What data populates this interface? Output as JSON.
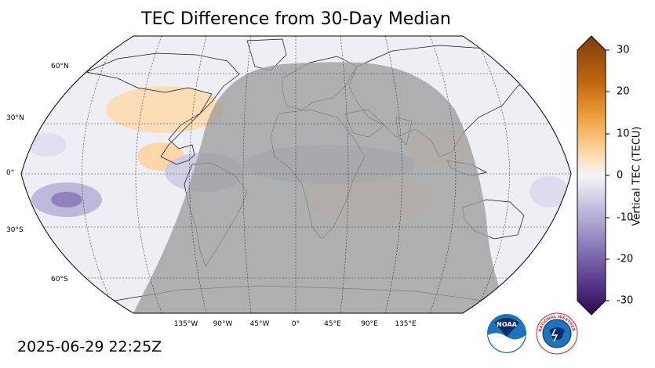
{
  "title": "TEC Difference from 30-Day Median",
  "timestamp": "2025-06-29 22:25Z",
  "latitude_labels": [
    "60°N",
    "30°N",
    "0°",
    "30°S",
    "60°S"
  ],
  "longitude_labels": [
    "135°W",
    "90°W",
    "45°W",
    "0°",
    "45°E",
    "90°E",
    "135°E"
  ],
  "colorbar": {
    "label": "Vertical TEC (TECU)",
    "ticks": [
      "30",
      "20",
      "10",
      "0",
      "-10",
      "-20",
      "-30"
    ],
    "range": [
      -30,
      30
    ],
    "colors": {
      "max": "#7a3e0e",
      "high": "#e08a1e",
      "mid_high": "#fcd9a8",
      "zero": "#f5f5f7",
      "mid_low": "#c9c6e2",
      "low": "#6e5aa3",
      "min": "#2d0a4e"
    }
  },
  "map": {
    "projection": "Robinson",
    "night_shade_color": "#9c9c9c",
    "ocean_color": "#eeeff5"
  },
  "logos": {
    "noaa": "NOAA",
    "nws": "NATIONAL WEATHER SERVICE"
  }
}
